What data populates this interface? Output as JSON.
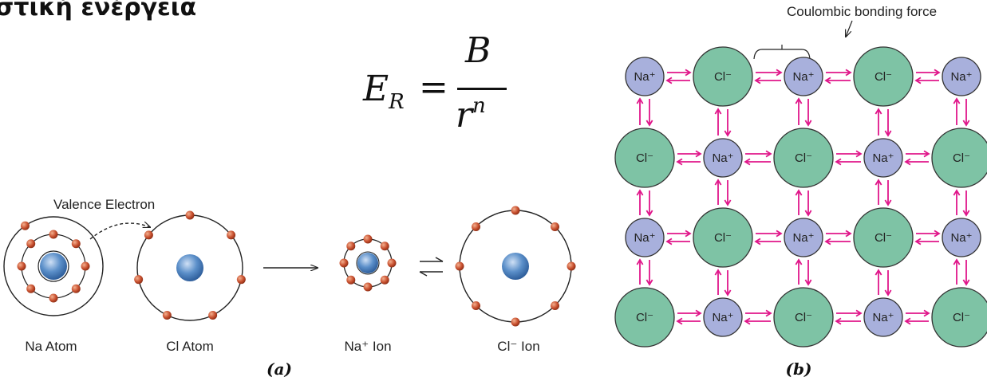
{
  "heading": "στική ενέργεια",
  "formula": {
    "lhs": "E",
    "lhs_sub": "R",
    "equals": "=",
    "numerator": "B",
    "denominator": "r",
    "denominator_exp": "n"
  },
  "panel_a": {
    "valence_label": "Valence Electron",
    "na_atom_label": "Na Atom",
    "cl_atom_label": "Cl Atom",
    "na_ion_label": "Na⁺ Ion",
    "cl_ion_label": "Cl⁻ Ion",
    "caption": "(a)"
  },
  "panel_b": {
    "force_label": "Coulombic bonding force",
    "na_ion": "Na⁺",
    "cl_ion": "Cl⁻",
    "caption": "(b)"
  },
  "colors": {
    "electron": "#c8502f",
    "nucleus": "#5b8fc9",
    "na_fill": "#a8b0dc",
    "cl_fill": "#7ec3a5",
    "arrow": "#e0168a"
  }
}
